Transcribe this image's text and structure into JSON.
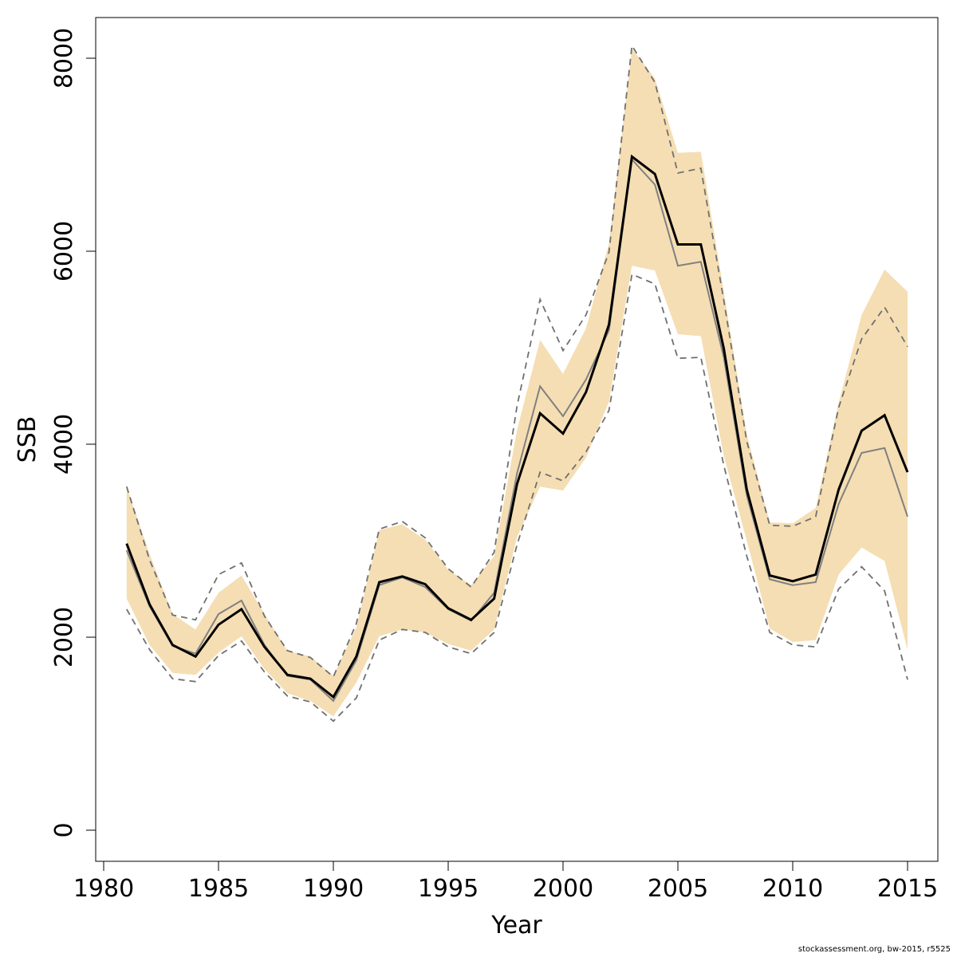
{
  "chart_data": {
    "type": "line",
    "title": "",
    "xlabel": "Year",
    "ylabel": "SSB",
    "xlim": [
      1980,
      2015
    ],
    "ylim": [
      0,
      8000
    ],
    "x_ticks": [
      "1980",
      "1985",
      "1990",
      "1995",
      "2000",
      "2005",
      "2010",
      "2015"
    ],
    "y_ticks": [
      "0",
      "2000",
      "4000",
      "6000",
      "8000"
    ],
    "grid": false,
    "legend": "none",
    "colors": {
      "band": "#f5deb3",
      "main_line": "#000000",
      "retro_line": "#808080",
      "dashed_line": "#707070"
    },
    "x": [
      1981,
      1982,
      1983,
      1984,
      1985,
      1986,
      1987,
      1988,
      1989,
      1990,
      1991,
      1992,
      1993,
      1994,
      1995,
      1996,
      1997,
      1998,
      1999,
      2000,
      2001,
      2002,
      2003,
      2004,
      2005,
      2006,
      2007,
      2008,
      2009,
      2010,
      2011,
      2012,
      2013,
      2014,
      2015
    ],
    "series": [
      {
        "role": "band_upper",
        "values": [
          3560,
          2860,
          2240,
          2080,
          2460,
          2640,
          2240,
          1860,
          1800,
          1600,
          2100,
          3110,
          3170,
          3010,
          2700,
          2540,
          2840,
          4150,
          5080,
          4730,
          5200,
          6080,
          8100,
          7790,
          7020,
          7030,
          5580,
          4100,
          3190,
          3180,
          3340,
          4430,
          5340,
          5810,
          5580
        ]
      },
      {
        "role": "band_lower",
        "values": [
          2400,
          1920,
          1630,
          1610,
          1840,
          2010,
          1670,
          1420,
          1340,
          1180,
          1530,
          2010,
          2080,
          2050,
          1930,
          1860,
          2080,
          3040,
          3560,
          3520,
          3860,
          4440,
          5850,
          5800,
          5140,
          5120,
          3880,
          3000,
          2090,
          1950,
          1970,
          2650,
          2930,
          2790,
          1870
        ]
      },
      {
        "role": "main",
        "values": [
          2970,
          2340,
          1920,
          1800,
          2130,
          2290,
          1900,
          1610,
          1570,
          1380,
          1800,
          2570,
          2630,
          2550,
          2300,
          2180,
          2400,
          3590,
          4320,
          4110,
          4540,
          5240,
          6980,
          6800,
          6070,
          6070,
          4990,
          3530,
          2640,
          2580,
          2650,
          3530,
          4140,
          4300,
          3710
        ]
      },
      {
        "role": "retro",
        "values": [
          2900,
          2320,
          1910,
          1830,
          2240,
          2380,
          1920,
          1600,
          1560,
          1340,
          1760,
          2540,
          2620,
          2520,
          2290,
          2170,
          2460,
          3700,
          4600,
          4290,
          4670,
          5180,
          6950,
          6690,
          5850,
          5890,
          4900,
          3470,
          2600,
          2540,
          2570,
          3380,
          3910,
          3960,
          3250
        ]
      },
      {
        "role": "dashed_upper",
        "values": [
          3560,
          2800,
          2230,
          2180,
          2650,
          2770,
          2220,
          1860,
          1790,
          1590,
          2140,
          3120,
          3200,
          3030,
          2710,
          2520,
          2880,
          4400,
          5500,
          4970,
          5340,
          5990,
          8130,
          7750,
          6810,
          6860,
          5490,
          4030,
          3160,
          3150,
          3250,
          4380,
          5090,
          5420,
          5010
        ]
      },
      {
        "role": "dashed_lower",
        "values": [
          2290,
          1870,
          1570,
          1540,
          1810,
          1960,
          1640,
          1390,
          1330,
          1130,
          1370,
          1970,
          2080,
          2050,
          1900,
          1830,
          2050,
          2960,
          3710,
          3620,
          3920,
          4350,
          5760,
          5660,
          4890,
          4900,
          3780,
          2840,
          2050,
          1920,
          1900,
          2500,
          2730,
          2480,
          1560
        ]
      }
    ]
  },
  "footer_text": "stockassessment.org, bw-2015, r5525"
}
